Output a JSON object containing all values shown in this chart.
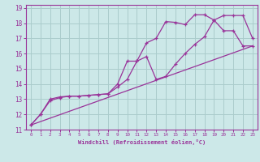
{
  "title": "",
  "xlabel": "Windchill (Refroidissement éolien,°C)",
  "ylabel": "",
  "bg_color": "#cce8e8",
  "line_color": "#993399",
  "grid_color": "#aacccc",
  "xlim": [
    -0.5,
    23.5
  ],
  "ylim": [
    11,
    19.2
  ],
  "xticks": [
    0,
    1,
    2,
    3,
    4,
    5,
    6,
    7,
    8,
    9,
    10,
    11,
    12,
    13,
    14,
    15,
    16,
    17,
    18,
    19,
    20,
    21,
    22,
    23
  ],
  "yticks": [
    11,
    12,
    13,
    14,
    15,
    16,
    17,
    18,
    19
  ],
  "line1_x": [
    0,
    1,
    2,
    3,
    4,
    5,
    6,
    7,
    8,
    9,
    10,
    11,
    12,
    13,
    14,
    15,
    16,
    17,
    18,
    19,
    20,
    21,
    22,
    23
  ],
  "line1_y": [
    11.3,
    12.0,
    12.9,
    13.1,
    13.2,
    13.2,
    13.25,
    13.3,
    13.35,
    13.8,
    14.3,
    15.5,
    16.7,
    17.0,
    18.1,
    18.05,
    17.9,
    18.55,
    18.55,
    18.2,
    17.5,
    17.5,
    16.5,
    16.5
  ],
  "line2_x": [
    0,
    1,
    2,
    3,
    4,
    5,
    6,
    7,
    8,
    9,
    10,
    11,
    12,
    13,
    14,
    15,
    16,
    17,
    18,
    19,
    20,
    21,
    22,
    23
  ],
  "line2_y": [
    11.3,
    12.0,
    13.0,
    13.15,
    13.2,
    13.2,
    13.25,
    13.3,
    13.35,
    14.0,
    15.5,
    15.5,
    15.8,
    14.3,
    14.5,
    15.3,
    16.0,
    16.6,
    17.1,
    18.2,
    18.5,
    18.5,
    18.5,
    17.0
  ],
  "line3_x": [
    0,
    23
  ],
  "line3_y": [
    11.3,
    16.5
  ]
}
